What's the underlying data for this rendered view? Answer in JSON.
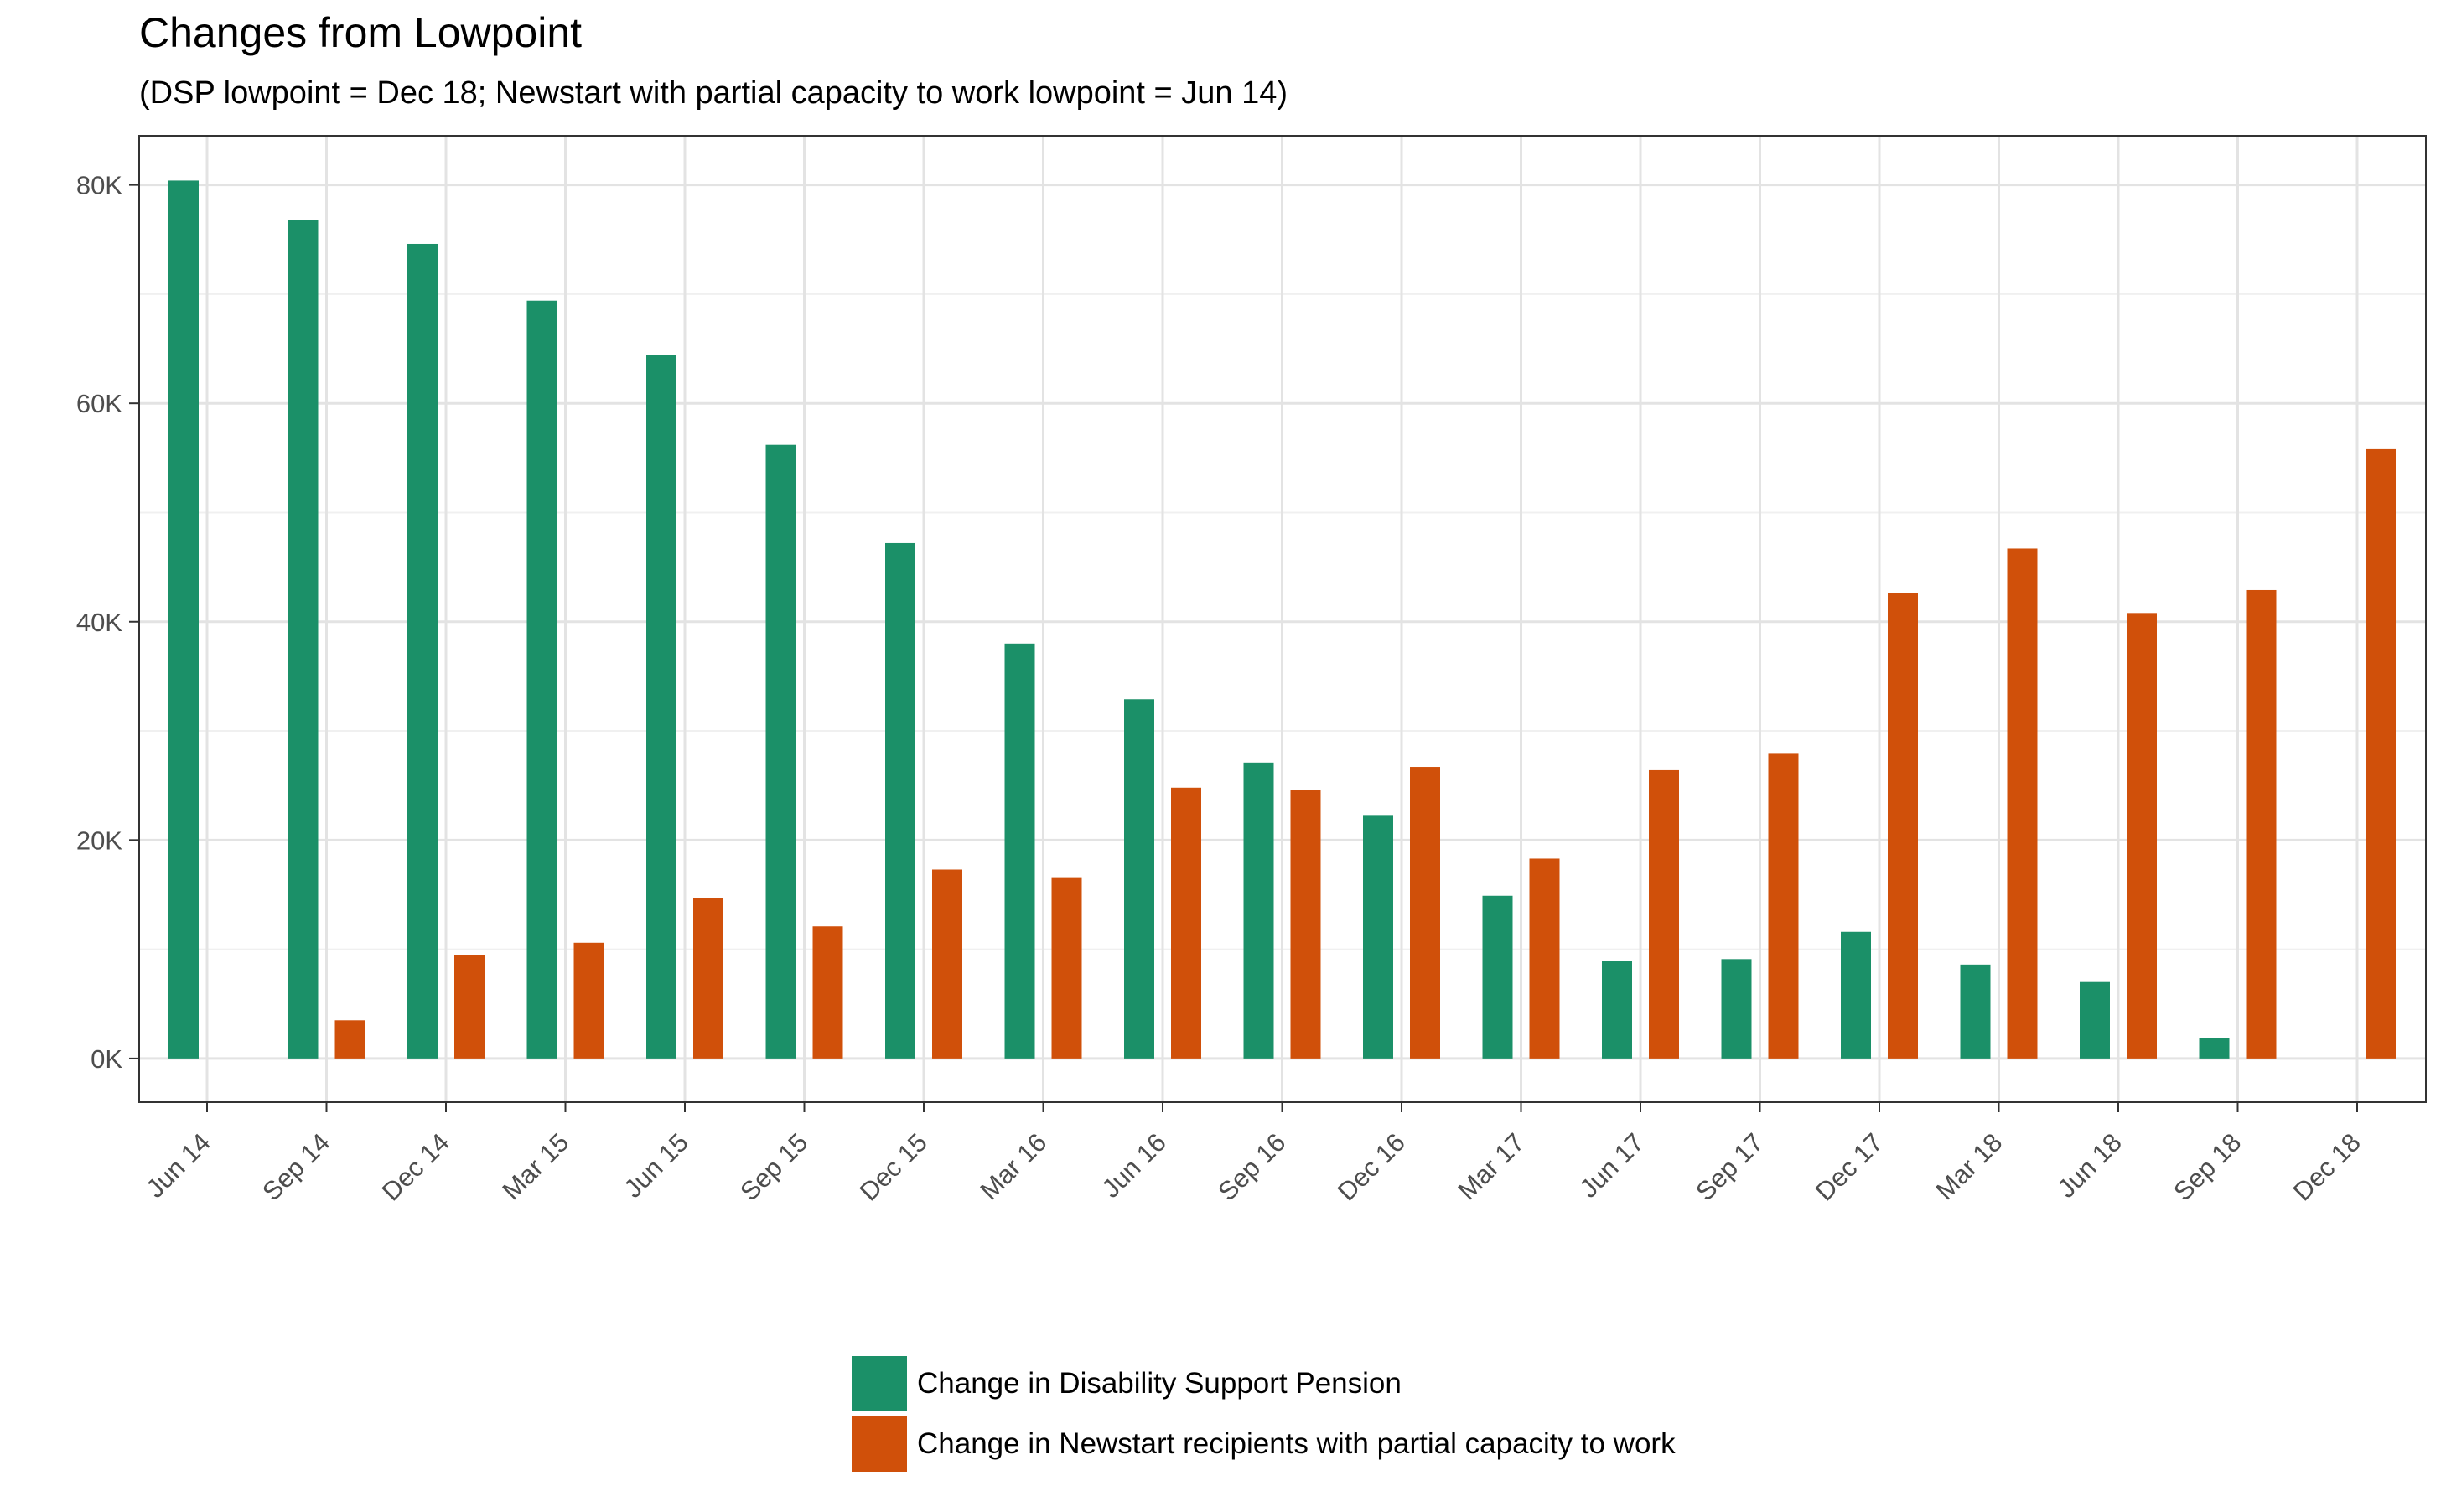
{
  "chart_data": {
    "type": "bar",
    "title": "Changes from Lowpoint",
    "subtitle": "(DSP lowpoint = Dec 18; Newstart with partial capacity to work lowpoint = Jun 14)",
    "xlabel": "",
    "ylabel": "",
    "categories": [
      "Jun 14",
      "Sep 14",
      "Dec 14",
      "Mar 15",
      "Jun 15",
      "Sep 15",
      "Dec 15",
      "Mar 16",
      "Jun 16",
      "Sep 16",
      "Dec 16",
      "Mar 17",
      "Jun 17",
      "Sep 17",
      "Dec 17",
      "Mar 18",
      "Jun 18",
      "Sep 18",
      "Dec 18"
    ],
    "series": [
      {
        "name": "Change in Disability Support Pension",
        "color": "#1b9068",
        "values": [
          80400,
          76800,
          74600,
          69400,
          64400,
          56200,
          47200,
          38000,
          32900,
          27100,
          22300,
          14900,
          8900,
          9100,
          11600,
          8600,
          7000,
          1900,
          0
        ]
      },
      {
        "name": "Change in Newstart recipients with partial capacity to work",
        "color": "#d0500a",
        "values": [
          0,
          3500,
          9500,
          10600,
          14700,
          12100,
          17300,
          16600,
          24800,
          24600,
          26700,
          18300,
          26400,
          27900,
          42600,
          46700,
          40800,
          42900,
          55800
        ]
      }
    ],
    "yticks": [
      "0K",
      "20K",
      "40K",
      "60K",
      "80K"
    ],
    "ytick_values": [
      0,
      20000,
      40000,
      60000,
      80000
    ],
    "ylim": [
      -4000,
      84500
    ],
    "grid": true,
    "legend_position": "bottom"
  }
}
